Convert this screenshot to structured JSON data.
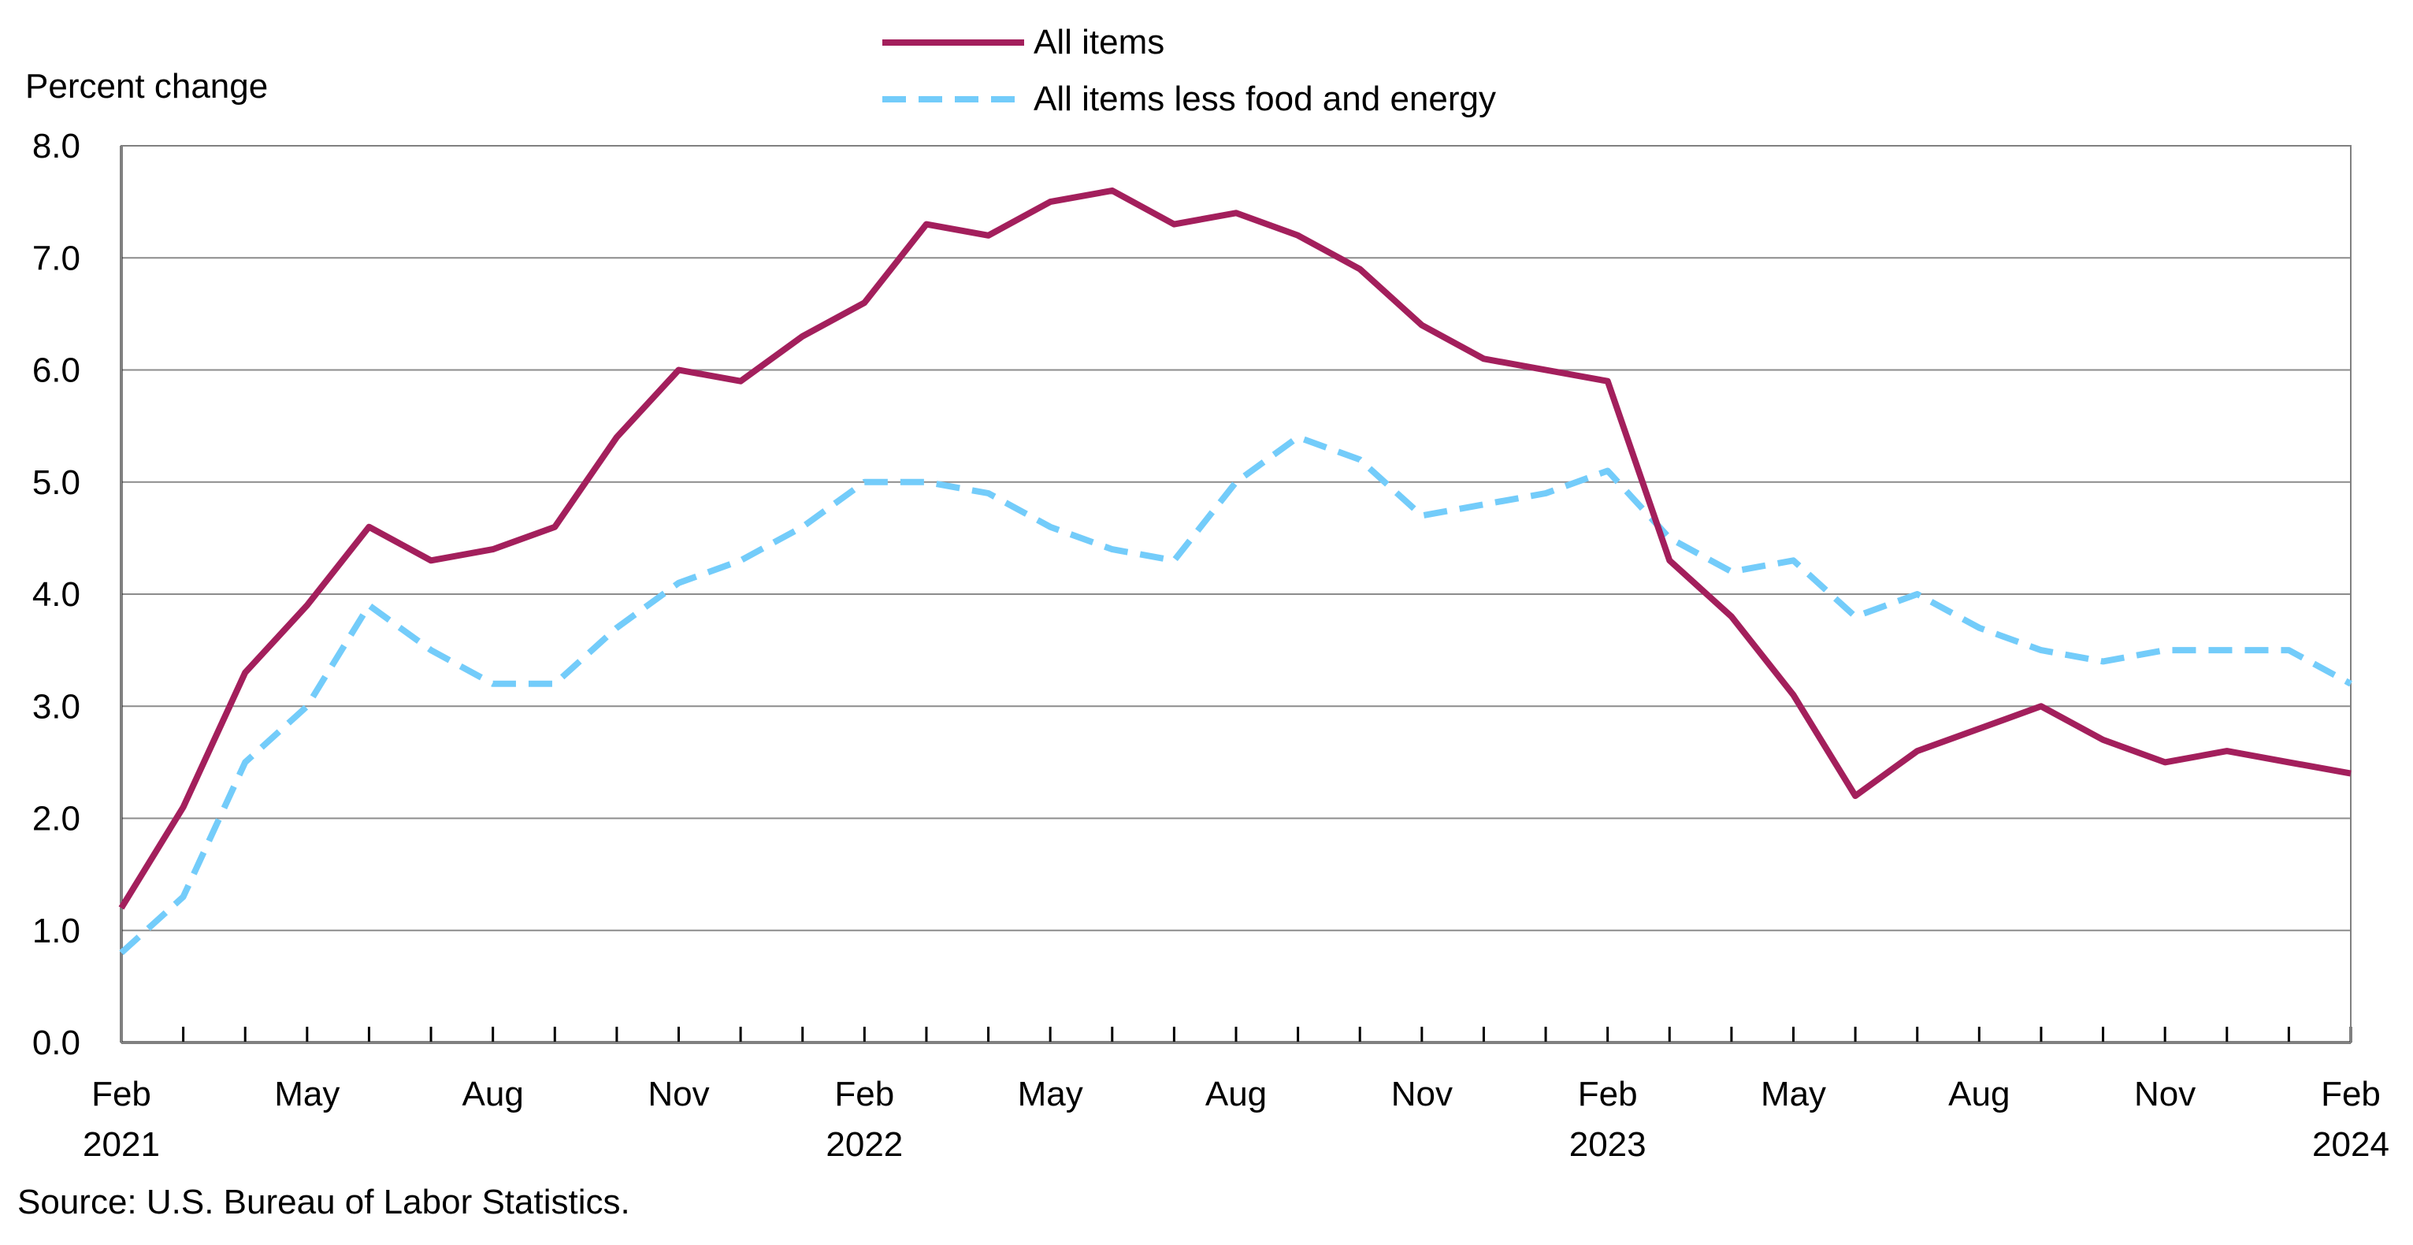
{
  "legend": {
    "items": [
      {
        "label": "All items",
        "color": "#A31F5C",
        "style": "solid"
      },
      {
        "label": "All items less food and energy",
        "color": "#73CCFA",
        "style": "dashed"
      }
    ]
  },
  "source": "Source: U.S. Bureau of Labor Statistics.",
  "chart_data": {
    "type": "line",
    "ylabel": "Percent change",
    "ylim": [
      0,
      8
    ],
    "y_ticks": [
      "0.0",
      "1.0",
      "2.0",
      "3.0",
      "4.0",
      "5.0",
      "6.0",
      "7.0",
      "8.0"
    ],
    "grid": true,
    "legend_position": "top-center",
    "x_start": "2021-02",
    "x_end": "2024-02",
    "x_tick_labels": [
      {
        "index": 0,
        "month": "Feb",
        "year": "2021"
      },
      {
        "index": 3,
        "month": "May",
        "year": ""
      },
      {
        "index": 6,
        "month": "Aug",
        "year": ""
      },
      {
        "index": 9,
        "month": "Nov",
        "year": ""
      },
      {
        "index": 12,
        "month": "Feb",
        "year": "2022"
      },
      {
        "index": 15,
        "month": "May",
        "year": ""
      },
      {
        "index": 18,
        "month": "Aug",
        "year": ""
      },
      {
        "index": 21,
        "month": "Nov",
        "year": ""
      },
      {
        "index": 24,
        "month": "Feb",
        "year": "2023"
      },
      {
        "index": 27,
        "month": "May",
        "year": ""
      },
      {
        "index": 30,
        "month": "Aug",
        "year": ""
      },
      {
        "index": 33,
        "month": "Nov",
        "year": ""
      },
      {
        "index": 36,
        "month": "Feb",
        "year": "2024"
      }
    ],
    "series": [
      {
        "name": "All items",
        "color": "#A31F5C",
        "style": "solid",
        "values": [
          1.2,
          2.1,
          3.3,
          3.9,
          4.6,
          4.3,
          4.4,
          4.6,
          5.4,
          6.0,
          5.9,
          6.3,
          6.6,
          7.3,
          7.2,
          7.5,
          7.6,
          7.3,
          7.4,
          7.2,
          6.9,
          6.4,
          6.1,
          6.0,
          5.9,
          4.3,
          3.8,
          3.1,
          2.2,
          2.6,
          2.8,
          3.0,
          2.7,
          2.5,
          2.6,
          2.5,
          2.4
        ]
      },
      {
        "name": "All items less food and energy",
        "color": "#73CCFA",
        "style": "dashed",
        "values": [
          0.8,
          1.3,
          2.5,
          3.0,
          3.9,
          3.5,
          3.2,
          3.2,
          3.7,
          4.1,
          4.3,
          4.6,
          5.0,
          5.0,
          4.9,
          4.6,
          4.4,
          4.3,
          5.0,
          5.4,
          5.2,
          4.7,
          4.8,
          4.9,
          5.1,
          4.5,
          4.2,
          4.3,
          3.8,
          4.0,
          3.7,
          3.5,
          3.4,
          3.5,
          3.5,
          3.5,
          3.2
        ]
      }
    ]
  }
}
